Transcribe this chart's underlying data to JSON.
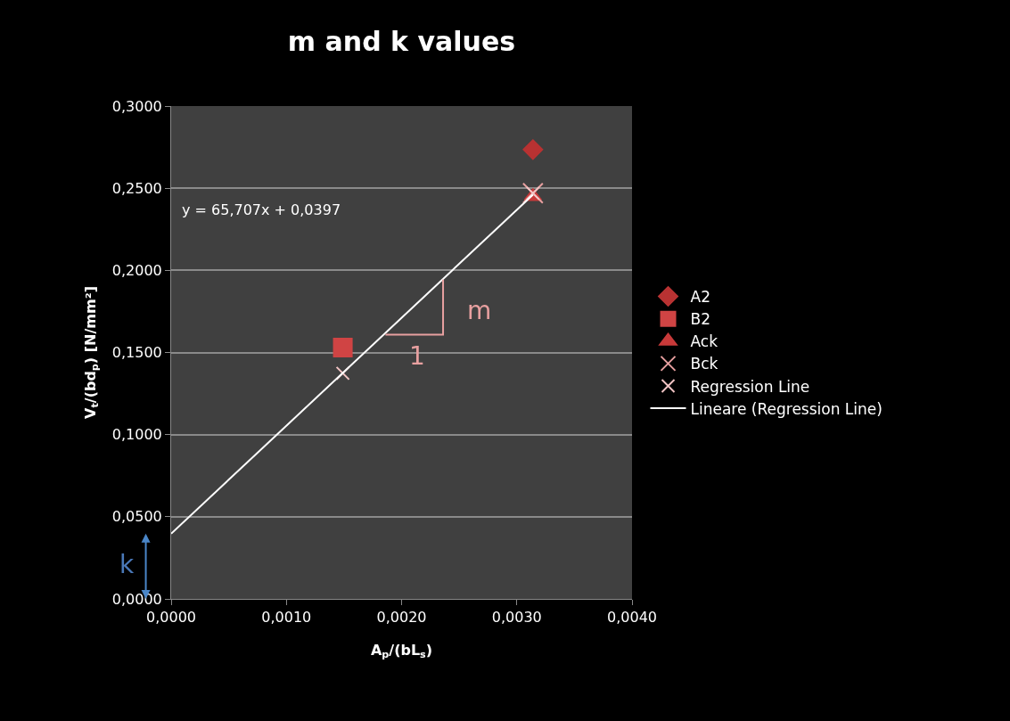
{
  "chart_data": {
    "type": "scatter",
    "title": "m and k values",
    "xlabel": "A$_{p}$/(bL$_{s}$)",
    "ylabel": "V$_{t}$/(bd$_{p}$) [N/mm²]",
    "xlim": [
      0,
      0.004
    ],
    "ylim": [
      0,
      0.3
    ],
    "xticks": [
      {
        "value": 0,
        "label": "0,0000"
      },
      {
        "value": 0.001,
        "label": "0,0010"
      },
      {
        "value": 0.002,
        "label": "0,0020"
      },
      {
        "value": 0.003,
        "label": "0,0030"
      },
      {
        "value": 0.004,
        "label": "0,0040"
      }
    ],
    "yticks": [
      {
        "value": 0,
        "label": "0,0000"
      },
      {
        "value": 0.05,
        "label": "0,0500"
      },
      {
        "value": 0.1,
        "label": "0,1000"
      },
      {
        "value": 0.15,
        "label": "0,1500"
      },
      {
        "value": 0.2,
        "label": "0,2000"
      },
      {
        "value": 0.25,
        "label": "0,2500"
      },
      {
        "value": 0.3,
        "label": "0,3000"
      }
    ],
    "grid": "y",
    "legend": "right",
    "series": [
      {
        "name": "A2",
        "color": "#b83232",
        "marker": "diamond",
        "x": [
          0.00314
        ],
        "values": [
          0.2735
        ]
      },
      {
        "name": "B2",
        "color": "#d04444",
        "marker": "square",
        "x": [
          0.00149
        ],
        "values": [
          0.153
        ]
      },
      {
        "name": "Ack",
        "color": "#c83a3a",
        "marker": "triangle",
        "x": [
          0.00314
        ],
        "values": [
          0.245
        ]
      },
      {
        "name": "Bck",
        "color": "#e8a0a0",
        "marker": "cross",
        "x": [
          0.00314
        ],
        "values": [
          0.247
        ]
      },
      {
        "name": "Regression Line",
        "color": "#f2c4c4",
        "marker": "cross",
        "x": [
          0.00149,
          0.00314
        ],
        "values": [
          0.1373,
          0.2469
        ]
      },
      {
        "name": "Lineare (Regression Line)",
        "type": "line",
        "color": "#ffffff",
        "x": [
          0,
          0.00314
        ],
        "values": [
          0.0397,
          0.246
        ]
      }
    ],
    "annotations": [
      "y = 65,707x + 0,0397",
      {
        "text": "m",
        "x": 0.00236,
        "y": 0.1948
      },
      {
        "text": "1",
        "x": 0.00186,
        "y": 0.162
      },
      "k"
    ]
  }
}
